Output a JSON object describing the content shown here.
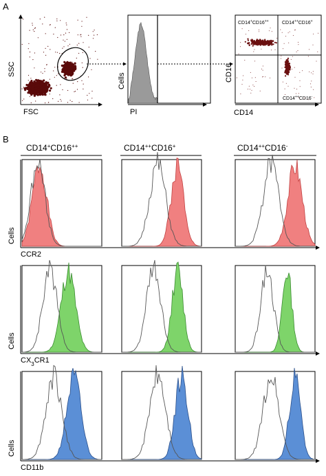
{
  "panel_a": {
    "letter": "A",
    "dot_plot_1": {
      "x_label": "FSC",
      "y_label": "SSC"
    },
    "histogram_pi": {
      "x_label": "PI",
      "y_label": "Cells"
    },
    "quad_plot": {
      "x_label": "CD14",
      "y_label": "CD16",
      "q_upper_left": "CD14+CD16++",
      "q_upper_right": "CD14++CD16+",
      "q_lower_right": "CD14++CD16-"
    }
  },
  "panel_b": {
    "letter": "B",
    "columns": [
      "CD14+CD16++",
      "CD14++CD16+",
      "CD14++CD16-"
    ],
    "rows": [
      {
        "marker": "CCR2",
        "y_label": "Cells",
        "color": "#f08080"
      },
      {
        "marker": "CX3CR1",
        "y_label": "Cells",
        "color": "#7ed46a"
      },
      {
        "marker": "CD11b",
        "y_label": "Cells",
        "color": "#5b8fd6"
      }
    ]
  },
  "chart_data": {
    "type": "area",
    "title": "",
    "xlabel": "",
    "ylabel": "Cells",
    "grid": false,
    "series": []
  }
}
